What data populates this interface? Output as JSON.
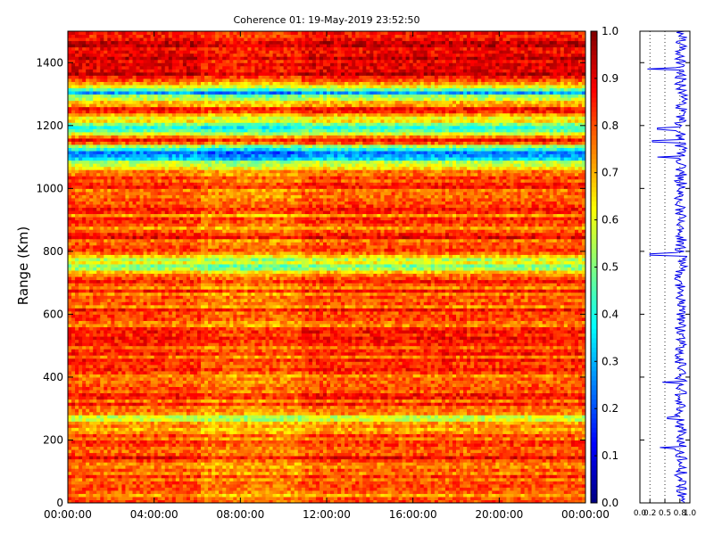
{
  "chart_data": [
    {
      "type": "heatmap",
      "title": "Coherence 01: 19-May-2019 23:52:50",
      "ylabel": "Range (Km)",
      "xlabel": "",
      "x_ticks": [
        "00:00:00",
        "04:00:00",
        "08:00:00",
        "12:00:00",
        "16:00:00",
        "20:00:00",
        "00:00:00"
      ],
      "xlim_hours": [
        0,
        24
      ],
      "y_ticks": [
        0,
        200,
        400,
        600,
        800,
        1000,
        1200,
        1400
      ],
      "ylim": [
        0,
        1500
      ],
      "colormap": "jet",
      "colorbar_range": [
        0.0,
        1.0
      ],
      "colorbar_ticks": [
        "0.0",
        "0.1",
        "0.2",
        "0.3",
        "0.4",
        "0.5",
        "0.6",
        "0.7",
        "0.8",
        "0.9",
        "1.0"
      ],
      "range_profile": [
        {
          "range_km": 0,
          "coherence": 0.78
        },
        {
          "range_km": 50,
          "coherence": 0.8
        },
        {
          "range_km": 100,
          "coherence": 0.76
        },
        {
          "range_km": 150,
          "coherence": 0.82
        },
        {
          "range_km": 200,
          "coherence": 0.78
        },
        {
          "range_km": 250,
          "coherence": 0.74
        },
        {
          "range_km": 270,
          "coherence": 0.62
        },
        {
          "range_km": 300,
          "coherence": 0.8
        },
        {
          "range_km": 350,
          "coherence": 0.82
        },
        {
          "range_km": 400,
          "coherence": 0.78
        },
        {
          "range_km": 450,
          "coherence": 0.8
        },
        {
          "range_km": 500,
          "coherence": 0.82
        },
        {
          "range_km": 550,
          "coherence": 0.79
        },
        {
          "range_km": 600,
          "coherence": 0.82
        },
        {
          "range_km": 650,
          "coherence": 0.8
        },
        {
          "range_km": 700,
          "coherence": 0.82
        },
        {
          "range_km": 760,
          "coherence": 0.52
        },
        {
          "range_km": 800,
          "coherence": 0.8
        },
        {
          "range_km": 850,
          "coherence": 0.82
        },
        {
          "range_km": 900,
          "coherence": 0.78
        },
        {
          "range_km": 950,
          "coherence": 0.82
        },
        {
          "range_km": 1000,
          "coherence": 0.8
        },
        {
          "range_km": 1050,
          "coherence": 0.84
        },
        {
          "range_km": 1115,
          "coherence": 0.2
        },
        {
          "range_km": 1150,
          "coherence": 0.86
        },
        {
          "range_km": 1190,
          "coherence": 0.38
        },
        {
          "range_km": 1250,
          "coherence": 0.86
        },
        {
          "range_km": 1305,
          "coherence": 0.35
        },
        {
          "range_km": 1350,
          "coherence": 0.88
        },
        {
          "range_km": 1400,
          "coherence": 0.9
        },
        {
          "range_km": 1450,
          "coherence": 0.88
        },
        {
          "range_km": 1500,
          "coherence": 0.86
        }
      ]
    },
    {
      "type": "line",
      "series": [
        {
          "x": [
            0.78,
            0.8,
            0.76,
            0.82,
            0.4,
            0.78,
            0.82,
            0.74,
            0.55,
            0.8,
            0.82,
            0.78,
            0.45,
            0.8,
            0.82,
            0.79,
            0.82,
            0.8,
            0.82,
            0.2,
            0.8,
            0.82,
            0.78,
            0.82,
            0.8,
            0.84,
            0.35,
            0.86,
            0.25,
            0.86,
            0.35,
            0.88,
            0.9,
            0.15,
            0.88,
            0.86
          ],
          "y": [
            0,
            50,
            100,
            150,
            175,
            200,
            230,
            250,
            270,
            300,
            350,
            370,
            385,
            400,
            450,
            500,
            550,
            600,
            700,
            790,
            800,
            850,
            900,
            950,
            1000,
            1050,
            1100,
            1115,
            1150,
            1180,
            1190,
            1250,
            1300,
            1380,
            1420,
            1500
          ]
        }
      ],
      "xlim": [
        0.0,
        1.0
      ],
      "x_ticks": [
        "0.0",
        "0.2",
        "0.5",
        "0.8",
        "1.0"
      ],
      "ylim": [
        0,
        1500
      ],
      "x_gridlines": [
        0.2,
        0.5,
        0.8
      ]
    }
  ],
  "colors": {
    "line": "#0000ee",
    "frame": "#000000",
    "grid": "#000000"
  }
}
